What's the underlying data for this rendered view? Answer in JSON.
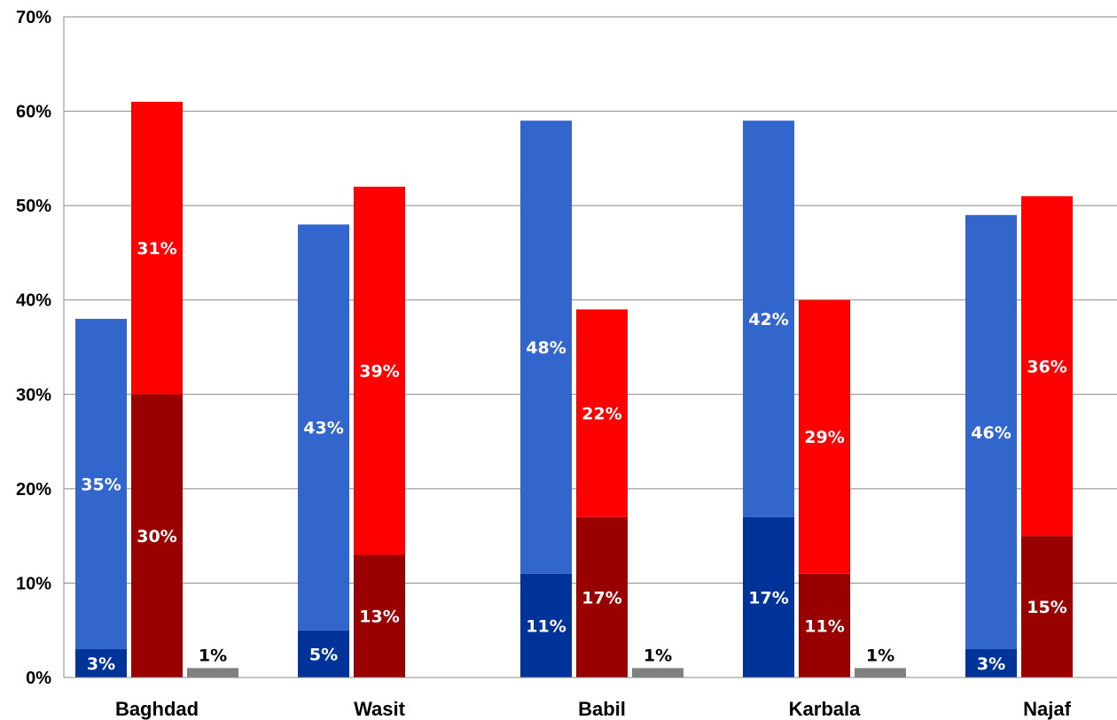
{
  "chart_data": {
    "type": "bar",
    "stacked_groups": true,
    "categories": [
      "Baghdad",
      "Wasit",
      "Babil",
      "Karbala",
      "Najaf"
    ],
    "ylim": [
      0,
      70
    ],
    "yticks": [
      0,
      10,
      20,
      30,
      40,
      50,
      60,
      70
    ],
    "ytick_labels": [
      "0%",
      "10%",
      "20%",
      "30%",
      "40%",
      "50%",
      "60%",
      "70%"
    ],
    "grid": true,
    "legend": "none",
    "title": "",
    "xlabel": "",
    "ylabel": "",
    "stacks": [
      {
        "segments": [
          {
            "values": [
              3,
              5,
              11,
              17,
              3
            ],
            "labels": [
              "3%",
              "5%",
              "11%",
              "17%",
              "3%"
            ],
            "color": "#003399",
            "label_color": "#ffffff"
          },
          {
            "values": [
              35,
              43,
              48,
              42,
              46
            ],
            "labels": [
              "35%",
              "43%",
              "48%",
              "42%",
              "46%"
            ],
            "color": "#3366cc",
            "label_color": "#ffffff"
          }
        ]
      },
      {
        "segments": [
          {
            "values": [
              30,
              13,
              17,
              11,
              15
            ],
            "labels": [
              "30%",
              "13%",
              "17%",
              "11%",
              "15%"
            ],
            "color": "#990000",
            "label_color": "#ffffff"
          },
          {
            "values": [
              31,
              39,
              22,
              29,
              36
            ],
            "labels": [
              "31%",
              "39%",
              "22%",
              "29%",
              "36%"
            ],
            "color": "#ff0000",
            "label_color": "#ffffff"
          }
        ]
      },
      {
        "segments": [
          {
            "values": [
              1,
              0,
              1,
              1,
              0
            ],
            "labels": [
              "1%",
              "",
              "1%",
              "1%",
              ""
            ],
            "color": "#808080",
            "label_color": "#000000"
          }
        ]
      }
    ]
  }
}
